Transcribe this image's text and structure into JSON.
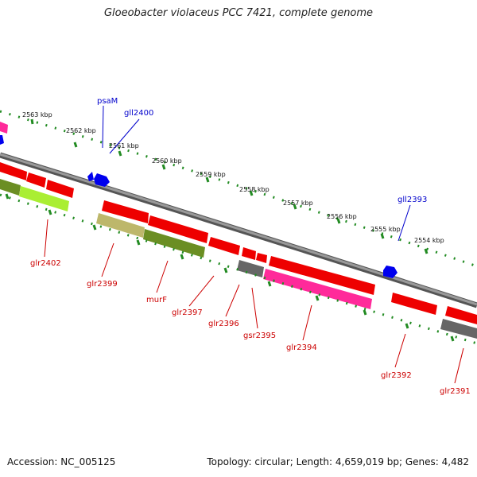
{
  "title": "Gloeobacter violaceus PCC 7421, complete genome",
  "footer": {
    "accession": "Accession: NC_005125",
    "topology": "Topology: circular; Length: 4,659,019 bp; Genes: 4,482"
  },
  "scale_labels": [
    "2563 kbp",
    "2562 kbp",
    "2561 kbp",
    "2560 kbp",
    "2559 kbp",
    "2558 kbp",
    "2557 kbp",
    "2556 kbp",
    "2555 kbp",
    "2554 kbp"
  ],
  "gene_labels": {
    "psaM": "psaM",
    "gll2400": "gll2400",
    "gll2393": "gll2393",
    "glr2402": "glr2402",
    "glr2399": "glr2399",
    "murF": "murF",
    "glr2397": "glr2397",
    "glr2396": "glr2396",
    "gsr2395": "gsr2395",
    "glr2394": "glr2394",
    "glr2392": "glr2392",
    "glr2391": "glr2391"
  },
  "colors": {
    "cds_red": "#ee0000",
    "pink": "#ff2a9a",
    "olive": "#6b8e23",
    "lime": "#aaee33",
    "khaki": "#bdb76b",
    "gray": "#666666",
    "blue": "#0000ee",
    "tick_green": "#228b22",
    "backbone": "#888888",
    "label_red": "#cc0000",
    "label_blue": "#0000cc"
  }
}
